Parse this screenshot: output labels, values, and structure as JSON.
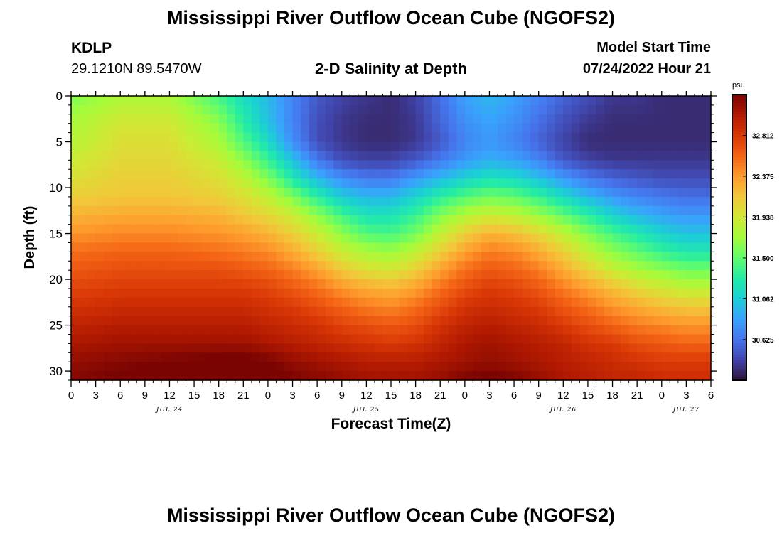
{
  "titles": {
    "top": "Mississippi River Outflow Ocean Cube (NGOFS2)",
    "bottom": "Mississippi River Outflow Ocean Cube (NGOFS2)"
  },
  "station": {
    "id": "KDLP",
    "coords": "29.1210N  89.5470W"
  },
  "plot_title": "2-D Salinity at Depth",
  "model": {
    "label": "Model Start Time",
    "time": "07/24/2022 Hour 21"
  },
  "chart_data": {
    "type": "heatmap",
    "title": "2-D Salinity at Depth",
    "xlabel": "Forecast Time(Z)",
    "ylabel": "Depth (ft)",
    "xlim_hours": [
      0,
      78
    ],
    "ylim": [
      31,
      0
    ],
    "x_ticks": [
      "0",
      "3",
      "6",
      "9",
      "12",
      "15",
      "18",
      "21",
      "0",
      "3",
      "6",
      "9",
      "12",
      "15",
      "18",
      "21",
      "0",
      "3",
      "6",
      "9",
      "12",
      "15",
      "18",
      "21",
      "0",
      "3",
      "6"
    ],
    "x_tick_hours": [
      0,
      3,
      6,
      9,
      12,
      15,
      18,
      21,
      24,
      27,
      30,
      33,
      36,
      39,
      42,
      45,
      48,
      51,
      54,
      57,
      60,
      63,
      66,
      69,
      72,
      75,
      78
    ],
    "date_labels": [
      {
        "text": "JUL 24",
        "hour": 12
      },
      {
        "text": "JUL 25",
        "hour": 36
      },
      {
        "text": "JUL 26",
        "hour": 60
      },
      {
        "text": "JUL 27",
        "hour": 75
      }
    ],
    "y_ticks": [
      0,
      5,
      10,
      15,
      20,
      25,
      30
    ],
    "hours": [
      0,
      6,
      12,
      18,
      21,
      24,
      27,
      30,
      33,
      36,
      39,
      42,
      45,
      48,
      51,
      54,
      57,
      60,
      63,
      66,
      69,
      72,
      75,
      78
    ],
    "depths_ft": [
      0,
      3,
      5,
      7,
      9,
      11,
      13,
      15,
      17,
      19,
      21,
      23,
      25,
      27,
      29,
      31
    ],
    "salinity_psu": [
      [
        31.6,
        31.75,
        31.75,
        31.4,
        31.15,
        30.95,
        30.7,
        30.5,
        30.4,
        30.35,
        30.3,
        30.4,
        30.6,
        30.85,
        30.95,
        30.85,
        30.7,
        30.55,
        30.45,
        30.35,
        30.35,
        30.3,
        30.3,
        30.3
      ],
      [
        31.75,
        31.95,
        31.95,
        31.65,
        31.3,
        31.0,
        30.7,
        30.45,
        30.35,
        30.3,
        30.3,
        30.35,
        30.55,
        30.75,
        30.85,
        30.75,
        30.6,
        30.45,
        30.35,
        30.3,
        30.3,
        30.3,
        30.3,
        30.3
      ],
      [
        31.8,
        32.0,
        32.0,
        31.75,
        31.45,
        31.15,
        30.75,
        30.45,
        30.35,
        30.3,
        30.3,
        30.35,
        30.5,
        30.7,
        30.8,
        30.7,
        30.55,
        30.4,
        30.3,
        30.3,
        30.3,
        30.3,
        30.3,
        30.3
      ],
      [
        31.9,
        32.05,
        32.05,
        31.9,
        31.65,
        31.35,
        31.0,
        30.65,
        30.45,
        30.4,
        30.4,
        30.5,
        30.65,
        30.8,
        30.9,
        30.85,
        30.7,
        30.5,
        30.4,
        30.35,
        30.35,
        30.35,
        30.35,
        30.35
      ],
      [
        32.0,
        32.1,
        32.1,
        32.0,
        31.85,
        31.6,
        31.25,
        30.95,
        30.75,
        30.65,
        30.65,
        30.8,
        30.95,
        31.1,
        31.2,
        31.15,
        31.0,
        30.8,
        30.65,
        30.55,
        30.5,
        30.45,
        30.45,
        30.45
      ],
      [
        32.1,
        32.15,
        32.15,
        32.1,
        32.0,
        31.85,
        31.6,
        31.3,
        31.05,
        30.95,
        30.95,
        31.1,
        31.3,
        31.45,
        31.55,
        31.5,
        31.35,
        31.15,
        30.95,
        30.8,
        30.7,
        30.65,
        30.6,
        30.6
      ],
      [
        32.25,
        32.3,
        32.3,
        32.25,
        32.15,
        32.05,
        31.9,
        31.65,
        31.4,
        31.2,
        31.2,
        31.35,
        31.6,
        31.8,
        31.9,
        31.85,
        31.7,
        31.5,
        31.3,
        31.1,
        30.95,
        30.85,
        30.8,
        30.8
      ],
      [
        32.4,
        32.45,
        32.45,
        32.4,
        32.35,
        32.25,
        32.1,
        31.9,
        31.65,
        31.45,
        31.4,
        31.55,
        31.85,
        32.1,
        32.25,
        32.2,
        32.05,
        31.85,
        31.6,
        31.4,
        31.25,
        31.1,
        31.0,
        31.0
      ],
      [
        32.55,
        32.6,
        32.6,
        32.55,
        32.5,
        32.45,
        32.3,
        32.1,
        31.9,
        31.75,
        31.7,
        31.85,
        32.1,
        32.35,
        32.5,
        32.45,
        32.3,
        32.1,
        31.85,
        31.65,
        31.5,
        31.35,
        31.25,
        31.25
      ],
      [
        32.65,
        32.7,
        32.7,
        32.7,
        32.65,
        32.6,
        32.5,
        32.35,
        32.15,
        32.0,
        31.95,
        32.1,
        32.35,
        32.55,
        32.65,
        32.6,
        32.5,
        32.3,
        32.1,
        31.9,
        31.75,
        31.65,
        31.55,
        31.55
      ],
      [
        32.75,
        32.8,
        32.8,
        32.8,
        32.8,
        32.75,
        32.65,
        32.55,
        32.4,
        32.3,
        32.25,
        32.35,
        32.55,
        32.7,
        32.8,
        32.75,
        32.65,
        32.5,
        32.35,
        32.2,
        32.05,
        31.95,
        31.85,
        31.85
      ],
      [
        32.85,
        32.9,
        32.9,
        32.9,
        32.9,
        32.85,
        32.8,
        32.7,
        32.6,
        32.5,
        32.45,
        32.55,
        32.7,
        32.85,
        32.9,
        32.85,
        32.8,
        32.65,
        32.55,
        32.4,
        32.3,
        32.2,
        32.15,
        32.15
      ],
      [
        32.95,
        33.0,
        33.0,
        33.0,
        33.0,
        32.95,
        32.9,
        32.85,
        32.75,
        32.7,
        32.65,
        32.7,
        32.85,
        32.95,
        33.0,
        32.95,
        32.9,
        32.8,
        32.7,
        32.6,
        32.5,
        32.45,
        32.4,
        32.4
      ],
      [
        33.05,
        33.1,
        33.1,
        33.1,
        33.1,
        33.05,
        33.0,
        32.95,
        32.9,
        32.85,
        32.8,
        32.85,
        32.95,
        33.05,
        33.1,
        33.05,
        33.0,
        32.95,
        32.85,
        32.8,
        32.7,
        32.65,
        32.6,
        32.6
      ],
      [
        33.15,
        33.2,
        33.25,
        33.3,
        33.3,
        33.25,
        33.15,
        33.1,
        33.05,
        33.0,
        33.0,
        33.0,
        33.05,
        33.1,
        33.15,
        33.1,
        33.05,
        33.0,
        32.95,
        32.9,
        32.85,
        32.8,
        32.8,
        32.8
      ],
      [
        33.2,
        33.3,
        33.35,
        33.4,
        33.45,
        33.35,
        33.25,
        33.2,
        33.15,
        33.1,
        33.1,
        33.1,
        33.15,
        33.25,
        33.3,
        33.25,
        33.15,
        33.05,
        33.0,
        32.95,
        32.95,
        32.9,
        32.9,
        32.9
      ]
    ],
    "colorbar": {
      "unit": "psu",
      "vmin": 30.19,
      "vmax": 33.25,
      "ticks": [
        "32.812",
        "32.375",
        "31.938",
        "31.500",
        "31.062",
        "30.625"
      ],
      "tick_values": [
        32.812,
        32.375,
        31.938,
        31.5,
        31.062,
        30.625
      ]
    },
    "colormap": [
      "#30123b",
      "#4145ab",
      "#4675ed",
      "#39a2fc",
      "#1bcfd4",
      "#24eca6",
      "#61fc6c",
      "#a4fc3b",
      "#d1e834",
      "#f3c63a",
      "#fe9b2d",
      "#f36315",
      "#d93806",
      "#b11901",
      "#7a0402"
    ]
  }
}
